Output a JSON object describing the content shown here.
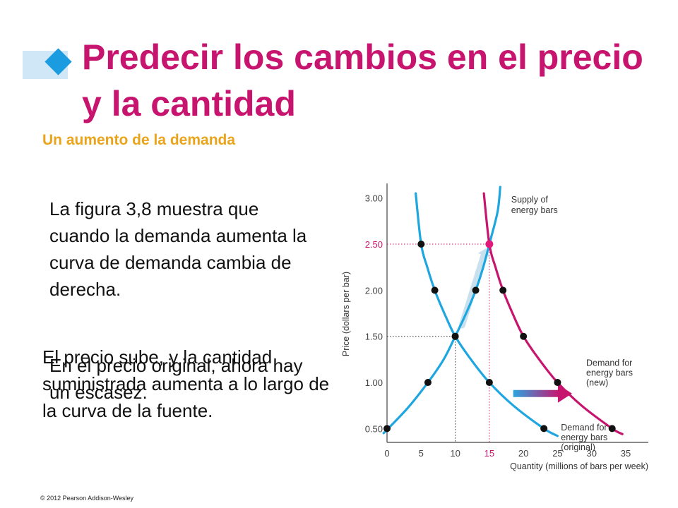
{
  "slide": {
    "title": "Predecir los cambios en el precio y la cantidad",
    "subtitle": "Un aumento de la demanda",
    "paragraph_1": "La figura 3,8 muestra que cuando la demanda aumenta la curva de demanda cambia de derecha.",
    "paragraph_2": "En el precio original, ahora hay un escasez.",
    "paragraph_3": "El precio sube, y la cantidad suministrada aumenta a lo largo de la curva de la fuente.",
    "copyright": "© 2012 Pearson Addison-Wesley"
  },
  "colors": {
    "title": "#c7156f",
    "subtitle": "#eaa41a",
    "supply_curve": "#c7156f",
    "demand_original_curve": "#1ea6e0",
    "demand_new_curve": "#c7156f",
    "equilibrium_new": "#e0197a",
    "shift_arrow_start": "#2aa5e0",
    "shift_arrow_end": "#c7156f"
  },
  "chart_data": {
    "type": "line",
    "xlabel": "Quantity (millions of bars per week)",
    "ylabel": "Price (dollars per bar)",
    "xlim": [
      0,
      38
    ],
    "ylim": [
      0.35,
      3.12
    ],
    "x_ticks": [
      "0",
      "5",
      "10",
      "15",
      "20",
      "25",
      "30",
      "35"
    ],
    "x_tick_values": [
      0,
      5,
      10,
      15,
      20,
      25,
      30,
      35
    ],
    "y_ticks": [
      "0.50",
      "1.00",
      "1.50",
      "2.00",
      "2.50",
      "3.00"
    ],
    "y_tick_values": [
      0.5,
      1.0,
      1.5,
      2.0,
      2.5,
      3.0
    ],
    "highlight_tick": "2.50",
    "grid": false,
    "series": [
      {
        "name": "Supply of energy bars",
        "label_lines": [
          "Supply of",
          "energy bars"
        ],
        "color": "#1ea6e0",
        "points": [
          [
            0,
            0.5
          ],
          [
            6,
            1.0
          ],
          [
            10,
            1.5
          ],
          [
            13,
            2.0
          ],
          [
            15,
            2.5
          ]
        ],
        "curve": [
          [
            -0.5,
            0.45
          ],
          [
            3,
            0.72
          ],
          [
            6,
            1.0
          ],
          [
            8.3,
            1.25
          ],
          [
            10,
            1.5
          ],
          [
            11.6,
            1.75
          ],
          [
            13,
            2.0
          ],
          [
            14.1,
            2.25
          ],
          [
            15,
            2.5
          ],
          [
            16.2,
            2.85
          ],
          [
            16.6,
            3.12
          ]
        ]
      },
      {
        "name": "Demand for energy bars (original)",
        "label_lines": [
          "Demand for",
          "energy bars",
          "(original)"
        ],
        "color": "#1ea6e0",
        "points": [
          [
            5,
            2.5
          ],
          [
            7,
            2.0
          ],
          [
            10,
            1.5
          ],
          [
            15,
            1.0
          ],
          [
            23,
            0.5
          ]
        ],
        "curve": [
          [
            4.2,
            3.05
          ],
          [
            5,
            2.5
          ],
          [
            5.9,
            2.25
          ],
          [
            7,
            2.0
          ],
          [
            8.4,
            1.75
          ],
          [
            10,
            1.5
          ],
          [
            12.3,
            1.25
          ],
          [
            15,
            1.0
          ],
          [
            18.5,
            0.75
          ],
          [
            23,
            0.5
          ],
          [
            25,
            0.42
          ]
        ]
      },
      {
        "name": "Demand for energy bars (new)",
        "label_lines": [
          "Demand for",
          "energy bars",
          "(new)"
        ],
        "color": "#c7156f",
        "points": [
          [
            15,
            2.5
          ],
          [
            17,
            2.0
          ],
          [
            20,
            1.5
          ],
          [
            25,
            1.0
          ],
          [
            33,
            0.5
          ]
        ],
        "curve": [
          [
            14.2,
            3.05
          ],
          [
            15,
            2.5
          ],
          [
            15.9,
            2.25
          ],
          [
            17,
            2.0
          ],
          [
            18.4,
            1.75
          ],
          [
            20,
            1.5
          ],
          [
            22.3,
            1.25
          ],
          [
            25,
            1.0
          ],
          [
            28.5,
            0.75
          ],
          [
            33,
            0.5
          ],
          [
            34.5,
            0.44
          ]
        ]
      }
    ],
    "equilibria": [
      {
        "label": "original",
        "x": 10,
        "y": 1.5
      },
      {
        "label": "new",
        "x": 15,
        "y": 2.5
      }
    ],
    "shift_arrow": {
      "from": [
        18.5,
        0.88
      ],
      "to": [
        26.5,
        0.88
      ]
    },
    "supply_arrow": {
      "from": [
        11.0,
        1.62
      ],
      "to": [
        14.2,
        2.38
      ]
    }
  }
}
